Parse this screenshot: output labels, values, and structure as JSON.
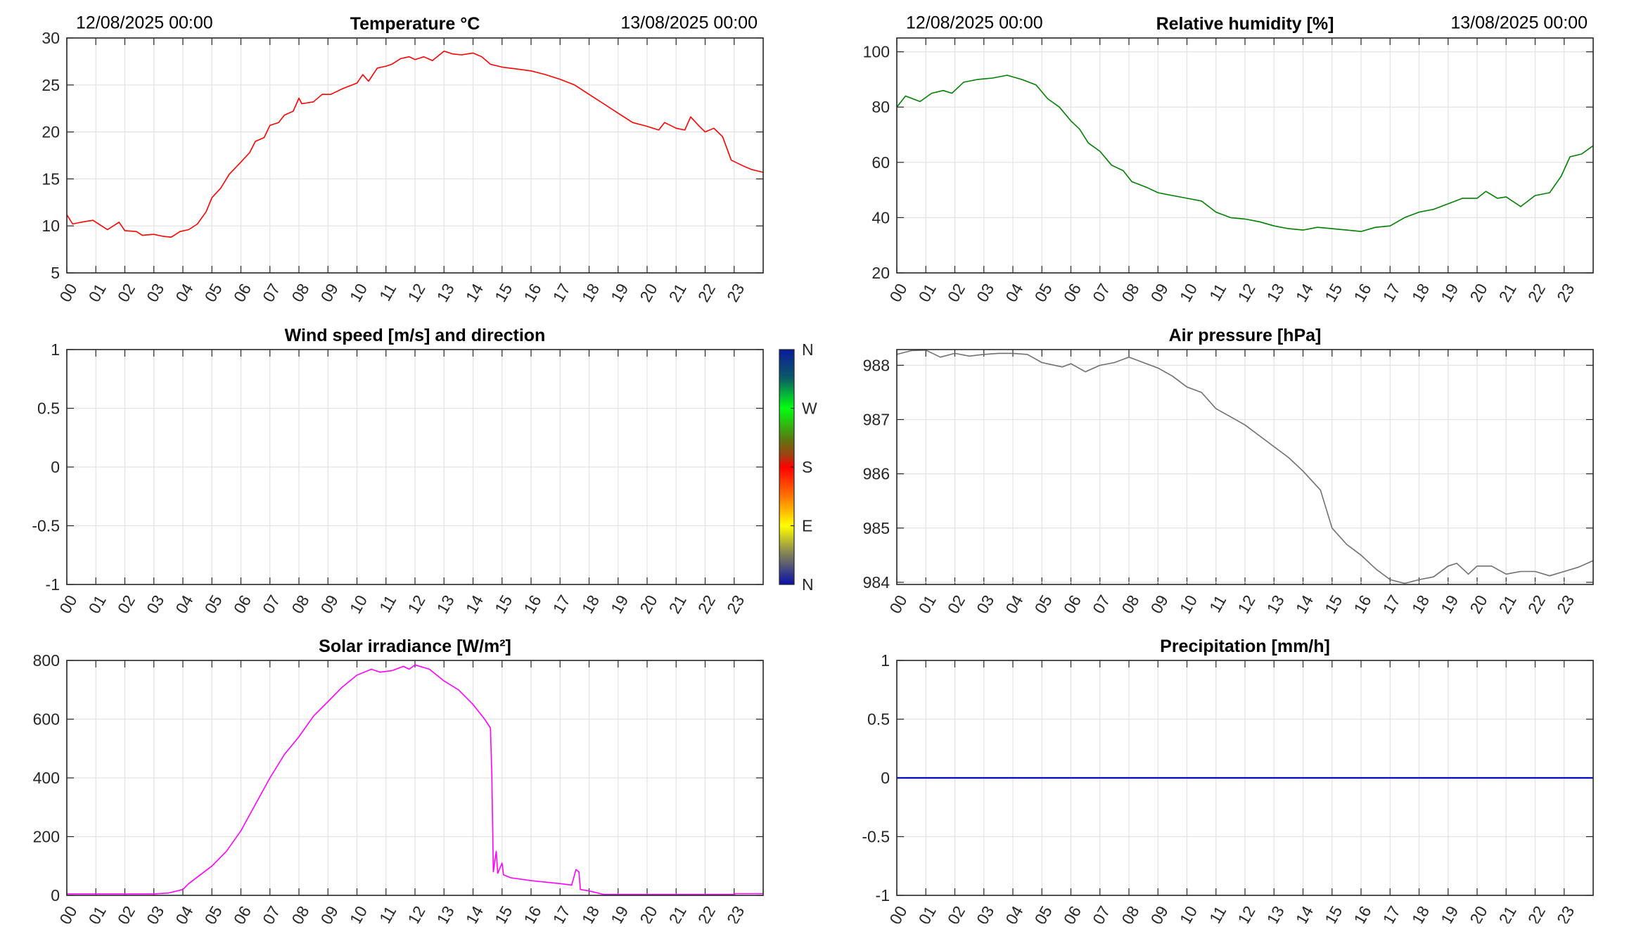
{
  "chart_data": [
    {
      "id": "temperature",
      "type": "line",
      "title": "Temperature °C",
      "date_start": "12/08/2025 00:00",
      "date_end": "13/08/2025 00:00",
      "color": "#ff0000",
      "xlim": [
        0,
        24
      ],
      "ylim": [
        5,
        30
      ],
      "yticks": [
        5,
        10,
        15,
        20,
        25,
        30
      ],
      "ytick_labels": [
        "5",
        "10",
        "15",
        "20",
        "25",
        "30"
      ],
      "xtick_labels": [
        "00",
        "01",
        "02",
        "03",
        "04",
        "05",
        "06",
        "07",
        "08",
        "09",
        "10",
        "11",
        "12",
        "13",
        "14",
        "15",
        "16",
        "17",
        "18",
        "19",
        "20",
        "21",
        "22",
        "23"
      ],
      "x": [
        0,
        0.2,
        0.5,
        0.9,
        1.2,
        1.4,
        1.8,
        2.0,
        2.4,
        2.6,
        3.0,
        3.3,
        3.6,
        3.9,
        4.2,
        4.5,
        4.8,
        5.0,
        5.3,
        5.6,
        6.0,
        6.3,
        6.5,
        6.8,
        7.0,
        7.3,
        7.5,
        7.8,
        8.0,
        8.1,
        8.5,
        8.8,
        9.1,
        9.5,
        10.0,
        10.2,
        10.4,
        10.7,
        11.0,
        11.2,
        11.5,
        11.8,
        12.0,
        12.3,
        12.6,
        13.0,
        13.3,
        13.6,
        14.0,
        14.3,
        14.6,
        15.0,
        15.5,
        16.0,
        16.5,
        17.0,
        17.5,
        18.0,
        18.5,
        19.0,
        19.5,
        20.0,
        20.4,
        20.6,
        21.0,
        21.3,
        21.5,
        21.8,
        22.0,
        22.3,
        22.6,
        22.9,
        23.3,
        23.6,
        24
      ],
      "y": [
        11.2,
        10.2,
        10.4,
        10.6,
        10.0,
        9.6,
        10.4,
        9.5,
        9.4,
        9.0,
        9.1,
        8.9,
        8.8,
        9.4,
        9.6,
        10.2,
        11.5,
        13.0,
        14.0,
        15.5,
        16.8,
        17.8,
        19.0,
        19.4,
        20.7,
        21.0,
        21.8,
        22.2,
        23.6,
        23.0,
        23.2,
        24.0,
        24.0,
        24.6,
        25.2,
        26.1,
        25.4,
        26.8,
        27.0,
        27.2,
        27.8,
        28.0,
        27.7,
        28.0,
        27.6,
        28.6,
        28.3,
        28.2,
        28.4,
        28.0,
        27.2,
        26.9,
        26.7,
        26.5,
        26.1,
        25.6,
        25.0,
        24.0,
        23.0,
        22.0,
        21.0,
        20.6,
        20.2,
        21.0,
        20.4,
        20.2,
        21.6,
        20.6,
        20.0,
        20.4,
        19.5,
        17.0,
        16.4,
        16.0,
        15.7
      ]
    },
    {
      "id": "humidity",
      "type": "line",
      "title": "Relative humidity [%]",
      "date_start": "12/08/2025 00:00",
      "date_end": "13/08/2025 00:00",
      "color": "#008000",
      "xlim": [
        0,
        24
      ],
      "ylim": [
        20,
        105
      ],
      "yticks": [
        20,
        40,
        60,
        80,
        100
      ],
      "ytick_labels": [
        "20",
        "40",
        "60",
        "80",
        "100"
      ],
      "xtick_labels": [
        "00",
        "01",
        "02",
        "03",
        "04",
        "05",
        "06",
        "07",
        "08",
        "09",
        "10",
        "11",
        "12",
        "13",
        "14",
        "15",
        "16",
        "17",
        "18",
        "19",
        "20",
        "21",
        "22",
        "23"
      ],
      "x": [
        0,
        0.3,
        0.8,
        1.2,
        1.6,
        1.9,
        2.3,
        2.8,
        3.3,
        3.8,
        4.3,
        4.8,
        5.2,
        5.6,
        6.0,
        6.3,
        6.6,
        7.0,
        7.4,
        7.8,
        8.1,
        8.6,
        9.0,
        9.5,
        10.0,
        10.5,
        11.0,
        11.5,
        12.0,
        12.5,
        13.0,
        13.5,
        14.0,
        14.5,
        15.0,
        15.5,
        16.0,
        16.5,
        17.0,
        17.5,
        18.0,
        18.5,
        19.0,
        19.5,
        20.0,
        20.3,
        20.7,
        21.0,
        21.5,
        22.0,
        22.5,
        22.9,
        23.2,
        23.6,
        24
      ],
      "y": [
        80,
        84,
        82,
        85,
        86,
        85,
        89,
        90,
        90.5,
        91.5,
        90,
        88,
        83,
        80,
        75,
        72,
        67,
        64,
        59,
        57,
        53,
        51,
        49,
        48,
        47,
        46,
        42,
        40,
        39.5,
        38.5,
        37,
        36,
        35.5,
        36.5,
        36,
        35.5,
        35,
        36.5,
        37,
        40,
        42,
        43,
        45,
        47,
        47,
        49.5,
        47,
        47.5,
        44,
        48,
        49,
        55,
        62,
        63,
        66
      ]
    },
    {
      "id": "wind",
      "type": "line",
      "title": "Wind speed [m/s] and direction",
      "color": "#000000",
      "xlim": [
        0,
        24
      ],
      "ylim": [
        -1,
        1
      ],
      "yticks": [
        -1,
        -0.5,
        0,
        0.5,
        1
      ],
      "ytick_labels": [
        "-1",
        "-0.5",
        "0",
        "0.5",
        "1"
      ],
      "xtick_labels": [
        "00",
        "01",
        "02",
        "03",
        "04",
        "05",
        "06",
        "07",
        "08",
        "09",
        "10",
        "11",
        "12",
        "13",
        "14",
        "15",
        "16",
        "17",
        "18",
        "19",
        "20",
        "21",
        "22",
        "23"
      ],
      "x": [],
      "y": [],
      "colorbar": {
        "labels": [
          "N",
          "W",
          "S",
          "E",
          "N"
        ]
      }
    },
    {
      "id": "pressure",
      "type": "line",
      "title": "Air pressure [hPa]",
      "color": "#707070",
      "xlim": [
        0,
        24
      ],
      "ylim": [
        983.96,
        988.29
      ],
      "yticks": [
        984,
        985,
        986,
        987,
        988
      ],
      "ytick_labels": [
        "984",
        "985",
        "986",
        "987",
        "988"
      ],
      "xtick_labels": [
        "00",
        "01",
        "02",
        "03",
        "04",
        "05",
        "06",
        "07",
        "08",
        "09",
        "10",
        "11",
        "12",
        "13",
        "14",
        "15",
        "16",
        "17",
        "18",
        "19",
        "20",
        "21",
        "22",
        "23"
      ],
      "x": [
        0,
        0.5,
        1.0,
        1.5,
        2.0,
        2.5,
        3.0,
        3.5,
        4.0,
        4.5,
        5.0,
        5.7,
        6.0,
        6.5,
        7.0,
        7.5,
        8.0,
        8.5,
        9.0,
        9.5,
        10.0,
        10.5,
        11.0,
        11.5,
        12.0,
        12.5,
        13.0,
        13.5,
        14.0,
        14.6,
        15.0,
        15.5,
        16.0,
        16.5,
        17.0,
        17.5,
        18.0,
        18.5,
        19.0,
        19.3,
        19.7,
        20.0,
        20.5,
        21.0,
        21.5,
        22.0,
        22.5,
        23.0,
        23.5,
        24
      ],
      "y": [
        988.2,
        988.27,
        988.28,
        988.15,
        988.22,
        988.17,
        988.2,
        988.22,
        988.22,
        988.2,
        988.05,
        987.97,
        988.03,
        987.88,
        988.0,
        988.05,
        988.15,
        988.05,
        987.95,
        987.8,
        987.6,
        987.5,
        987.2,
        987.05,
        986.9,
        986.7,
        986.5,
        986.3,
        986.05,
        985.7,
        985.0,
        984.7,
        984.5,
        984.25,
        984.05,
        983.98,
        984.05,
        984.1,
        984.3,
        984.35,
        984.15,
        984.3,
        984.3,
        984.15,
        984.2,
        984.2,
        984.12,
        984.2,
        984.28,
        984.4
      ]
    },
    {
      "id": "solar",
      "type": "line",
      "title": "Solar irradiance [W/m²]",
      "color": "#ff00ff",
      "xlim": [
        0,
        24
      ],
      "ylim": [
        0,
        800
      ],
      "yticks": [
        0,
        200,
        400,
        600,
        800
      ],
      "ytick_labels": [
        "0",
        "200",
        "400",
        "600",
        "800"
      ],
      "xtick_labels": [
        "00",
        "01",
        "02",
        "03",
        "04",
        "05",
        "06",
        "07",
        "08",
        "09",
        "10",
        "11",
        "12",
        "13",
        "14",
        "15",
        "16",
        "17",
        "18",
        "19",
        "20",
        "21",
        "22",
        "23"
      ],
      "x": [
        0,
        3.0,
        3.5,
        4.0,
        4.2,
        4.6,
        5.0,
        5.5,
        6.0,
        6.5,
        7.0,
        7.5,
        8.0,
        8.5,
        9.0,
        9.5,
        10.0,
        10.5,
        10.8,
        11.2,
        11.6,
        11.8,
        12.0,
        12.5,
        13.0,
        13.5,
        14.0,
        14.4,
        14.6,
        14.65,
        14.7,
        14.8,
        14.85,
        15.0,
        15.05,
        15.3,
        16.0,
        17.0,
        17.4,
        17.55,
        17.65,
        17.7,
        18.0,
        18.5,
        23.0,
        23.05,
        24
      ],
      "y": [
        5,
        5,
        8,
        20,
        40,
        70,
        100,
        150,
        220,
        310,
        400,
        480,
        540,
        610,
        660,
        710,
        750,
        770,
        760,
        765,
        780,
        770,
        785,
        770,
        730,
        700,
        650,
        600,
        570,
        400,
        80,
        150,
        75,
        110,
        70,
        60,
        50,
        40,
        35,
        88,
        80,
        20,
        15,
        3,
        3,
        6,
        6
      ]
    },
    {
      "id": "precipitation",
      "type": "line",
      "title": "Precipitation [mm/h]",
      "color": "#0000ff",
      "xlim": [
        0,
        24
      ],
      "ylim": [
        -1,
        1
      ],
      "yticks": [
        -1,
        -0.5,
        0,
        0.5,
        1
      ],
      "ytick_labels": [
        "-1",
        "-0.5",
        "0",
        "0.5",
        "1"
      ],
      "xtick_labels": [
        "00",
        "01",
        "02",
        "03",
        "04",
        "05",
        "06",
        "07",
        "08",
        "09",
        "10",
        "11",
        "12",
        "13",
        "14",
        "15",
        "16",
        "17",
        "18",
        "19",
        "20",
        "21",
        "22",
        "23"
      ],
      "x": [
        0,
        24
      ],
      "y": [
        0,
        0
      ]
    }
  ]
}
